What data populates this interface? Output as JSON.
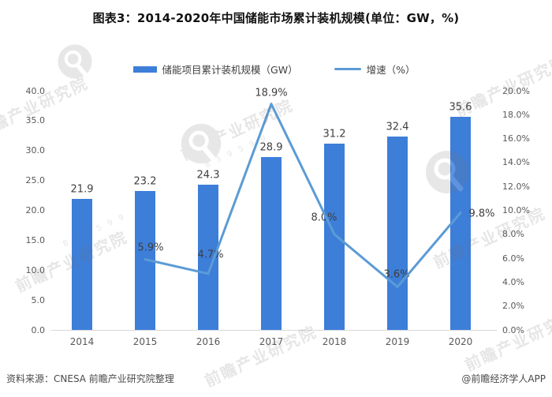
{
  "title": "图表3：2014-2020年中国储能市场累计装机规模(单位：GW，%)",
  "legend": {
    "items": [
      {
        "label": "储能项目累计装机规模（GW）",
        "type": "bar",
        "color": "#3d7ed9"
      },
      {
        "label": "增速（%）",
        "type": "line",
        "color": "#5b9bd5"
      }
    ]
  },
  "chart_data": {
    "type": "bar+line",
    "title": "图表3：2014-2020年中国储能市场累计装机规模(单位：GW，%)",
    "categories": [
      "2014",
      "2015",
      "2016",
      "2017",
      "2018",
      "2019",
      "2020"
    ],
    "series": [
      {
        "name": "储能项目累计装机规模（GW）",
        "type": "bar",
        "yaxis": "left",
        "color": "#3d7ed9",
        "values": [
          21.9,
          23.2,
          24.3,
          28.9,
          31.2,
          32.4,
          35.6
        ],
        "data_labels": [
          "21.9",
          "23.2",
          "24.3",
          "28.9",
          "31.2",
          "32.4",
          "35.6"
        ]
      },
      {
        "name": "增速（%）",
        "type": "line",
        "yaxis": "right",
        "color": "#5b9bd5",
        "values": [
          null,
          5.9,
          4.7,
          18.9,
          8.0,
          3.6,
          9.8
        ],
        "data_labels": [
          null,
          "5.9%",
          "4.7%",
          "18.9%",
          "8.0%",
          "3.6%",
          "9.8%"
        ],
        "label_offsets": [
          null,
          [
            7,
            -15
          ],
          [
            3,
            -24
          ],
          [
            0,
            -14
          ],
          [
            -13,
            -21
          ],
          [
            -1,
            -15
          ],
          [
            27,
            1
          ]
        ]
      }
    ],
    "left_axis": {
      "min": 0,
      "max": 40,
      "step": 5,
      "ticks": [
        "0.0",
        "5.0",
        "10.0",
        "15.0",
        "20.0",
        "25.0",
        "30.0",
        "35.0",
        "40.0"
      ]
    },
    "right_axis": {
      "min": 0,
      "max": 20,
      "step": 2,
      "ticks": [
        "0.0%",
        "2.0%",
        "4.0%",
        "6.0%",
        "8.0%",
        "10.0%",
        "12.0%",
        "14.0%",
        "16.0%",
        "18.0%",
        "20.0%"
      ]
    },
    "grid": false,
    "legend_position": "top"
  },
  "footer": {
    "source": "资料来源：CNESA 前瞻产业研究院整理",
    "credit": "@前瞻经济学人APP"
  },
  "watermark": {
    "text": "前瞻产业研究院",
    "digits": "8 3 9 5 9 9"
  }
}
